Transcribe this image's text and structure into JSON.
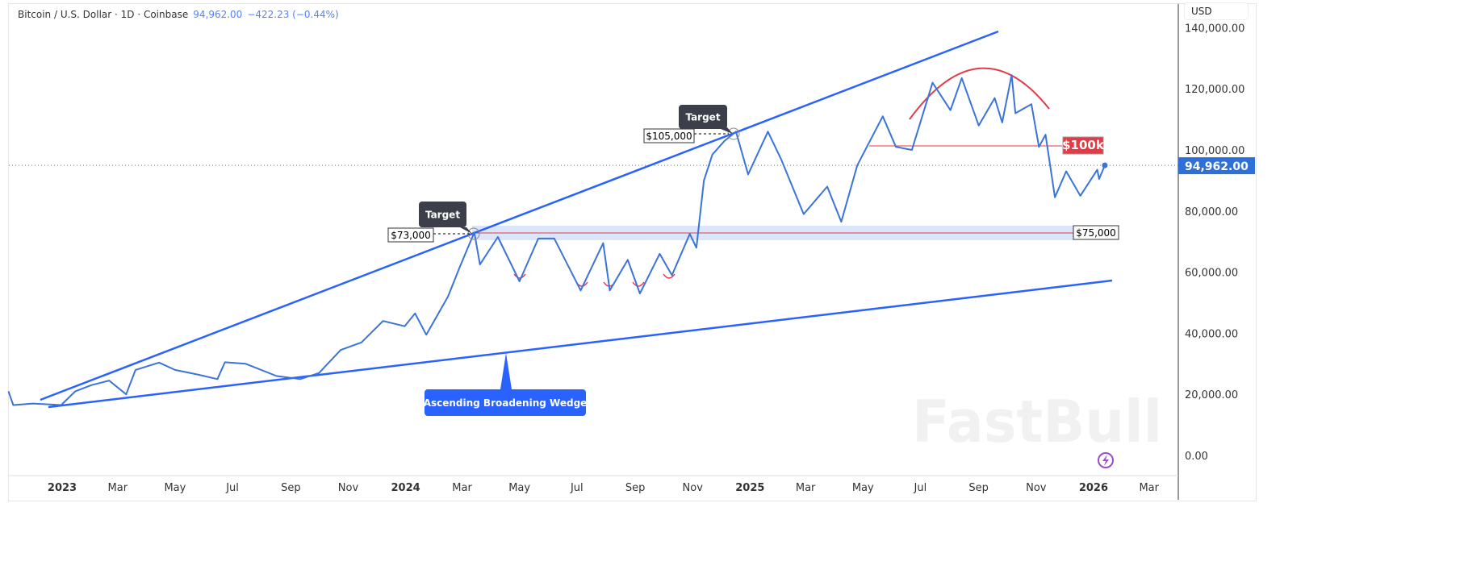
{
  "header": {
    "symbol": "Bitcoin / U.S. Dollar · 1D · Coinbase",
    "last": "94,962.00",
    "change": "−422.23 (−0.44%)",
    "currency": "USD"
  },
  "colors": {
    "price": "#3a74d9",
    "wedge": "#2962ff",
    "red": "#e53945",
    "band": "#dbe6fb",
    "label_bg": "#3c3f4a"
  },
  "annotations": {
    "target1": "Target",
    "target2": "Target",
    "p73": "$73,000",
    "p105": "$105,000",
    "p75": "$75,000",
    "p100": "$100k",
    "wedge": "Ascending Broadening Wedge",
    "watermark": "FastBull"
  },
  "chart_data": {
    "type": "line",
    "title": "Bitcoin / U.S. Dollar · 1D · Coinbase",
    "ylim": [
      0,
      140000
    ],
    "y_ticks": [
      {
        "v": 140000,
        "t": "140,000.00"
      },
      {
        "v": 120000,
        "t": "120,000.00"
      },
      {
        "v": 100000,
        "t": "100,000.00"
      },
      {
        "v": 80000,
        "t": "80,000.00"
      },
      {
        "v": 60000,
        "t": "60,000.00"
      },
      {
        "v": 40000,
        "t": "40,000.00"
      },
      {
        "v": 20000,
        "t": "20,000.00"
      },
      {
        "v": 0,
        "t": "0.00"
      }
    ],
    "last_price": {
      "v": 94962,
      "t": "94,962.00"
    },
    "x_ticks": [
      {
        "d": "2023-01-01",
        "t": "2023"
      },
      {
        "d": "2023-03-01",
        "t": "Mar"
      },
      {
        "d": "2023-05-01",
        "t": "May"
      },
      {
        "d": "2023-07-01",
        "t": "Jul"
      },
      {
        "d": "2023-09-01",
        "t": "Sep"
      },
      {
        "d": "2023-11-01",
        "t": "Nov"
      },
      {
        "d": "2024-01-01",
        "t": "2024"
      },
      {
        "d": "2024-03-01",
        "t": "Mar"
      },
      {
        "d": "2024-05-01",
        "t": "May"
      },
      {
        "d": "2024-07-01",
        "t": "Jul"
      },
      {
        "d": "2024-09-01",
        "t": "Sep"
      },
      {
        "d": "2024-11-01",
        "t": "Nov"
      },
      {
        "d": "2025-01-01",
        "t": "2025"
      },
      {
        "d": "2025-03-01",
        "t": "Mar"
      },
      {
        "d": "2025-05-01",
        "t": "May"
      },
      {
        "d": "2025-07-01",
        "t": "Jul"
      },
      {
        "d": "2025-09-01",
        "t": "Sep"
      },
      {
        "d": "2025-11-01",
        "t": "Nov"
      },
      {
        "d": "2026-01-01",
        "t": "2026"
      },
      {
        "d": "2026-03-01",
        "t": "Mar"
      }
    ],
    "series": [
      {
        "points": [
          [
            "2022-11-05",
            21000
          ],
          [
            "2022-11-10",
            16500
          ],
          [
            "2022-12-01",
            17000
          ],
          [
            "2022-12-31",
            16500
          ],
          [
            "2023-01-15",
            21000
          ],
          [
            "2023-02-01",
            23000
          ],
          [
            "2023-02-20",
            24500
          ],
          [
            "2023-03-10",
            20000
          ],
          [
            "2023-03-20",
            28000
          ],
          [
            "2023-04-14",
            30400
          ],
          [
            "2023-05-01",
            28000
          ],
          [
            "2023-05-25",
            26500
          ],
          [
            "2023-06-15",
            25000
          ],
          [
            "2023-06-23",
            30500
          ],
          [
            "2023-07-15",
            30000
          ],
          [
            "2023-08-17",
            26000
          ],
          [
            "2023-09-11",
            25000
          ],
          [
            "2023-10-01",
            27000
          ],
          [
            "2023-10-24",
            34500
          ],
          [
            "2023-11-15",
            37000
          ],
          [
            "2023-12-08",
            44000
          ],
          [
            "2023-12-31",
            42300
          ],
          [
            "2024-01-11",
            46500
          ],
          [
            "2024-01-23",
            39500
          ],
          [
            "2024-02-15",
            52000
          ],
          [
            "2024-02-28",
            62000
          ],
          [
            "2024-03-14",
            73000
          ],
          [
            "2024-03-20",
            62500
          ],
          [
            "2024-04-08",
            71500
          ],
          [
            "2024-05-01",
            57000
          ],
          [
            "2024-05-21",
            71000
          ],
          [
            "2024-06-07",
            71000
          ],
          [
            "2024-07-05",
            54000
          ],
          [
            "2024-07-29",
            69500
          ],
          [
            "2024-08-05",
            54000
          ],
          [
            "2024-08-24",
            64000
          ],
          [
            "2024-09-06",
            53000
          ],
          [
            "2024-09-27",
            66000
          ],
          [
            "2024-10-10",
            59000
          ],
          [
            "2024-10-29",
            72500
          ],
          [
            "2024-11-05",
            68000
          ],
          [
            "2024-11-13",
            90000
          ],
          [
            "2024-11-22",
            98500
          ],
          [
            "2024-12-05",
            103000
          ],
          [
            "2024-12-17",
            106000
          ],
          [
            "2024-12-30",
            92000
          ],
          [
            "2025-01-20",
            106000
          ],
          [
            "2025-02-03",
            97000
          ],
          [
            "2025-02-27",
            79000
          ],
          [
            "2025-03-24",
            88000
          ],
          [
            "2025-04-08",
            76500
          ],
          [
            "2025-04-25",
            95000
          ],
          [
            "2025-05-22",
            111000
          ],
          [
            "2025-06-05",
            101000
          ],
          [
            "2025-06-22",
            100000
          ],
          [
            "2025-07-14",
            122000
          ],
          [
            "2025-08-02",
            113000
          ],
          [
            "2025-08-14",
            123500
          ],
          [
            "2025-09-01",
            108000
          ],
          [
            "2025-09-18",
            117000
          ],
          [
            "2025-09-26",
            109000
          ],
          [
            "2025-10-06",
            124500
          ],
          [
            "2025-10-10",
            112000
          ],
          [
            "2025-10-27",
            115000
          ],
          [
            "2025-11-04",
            101000
          ],
          [
            "2025-11-11",
            105000
          ],
          [
            "2025-11-21",
            84500
          ],
          [
            "2025-12-03",
            93000
          ],
          [
            "2025-12-18",
            85000
          ],
          [
            "2026-01-05",
            93500
          ],
          [
            "2026-01-07",
            90500
          ],
          [
            "2026-01-13",
            94962
          ]
        ]
      }
    ],
    "grid": false
  }
}
